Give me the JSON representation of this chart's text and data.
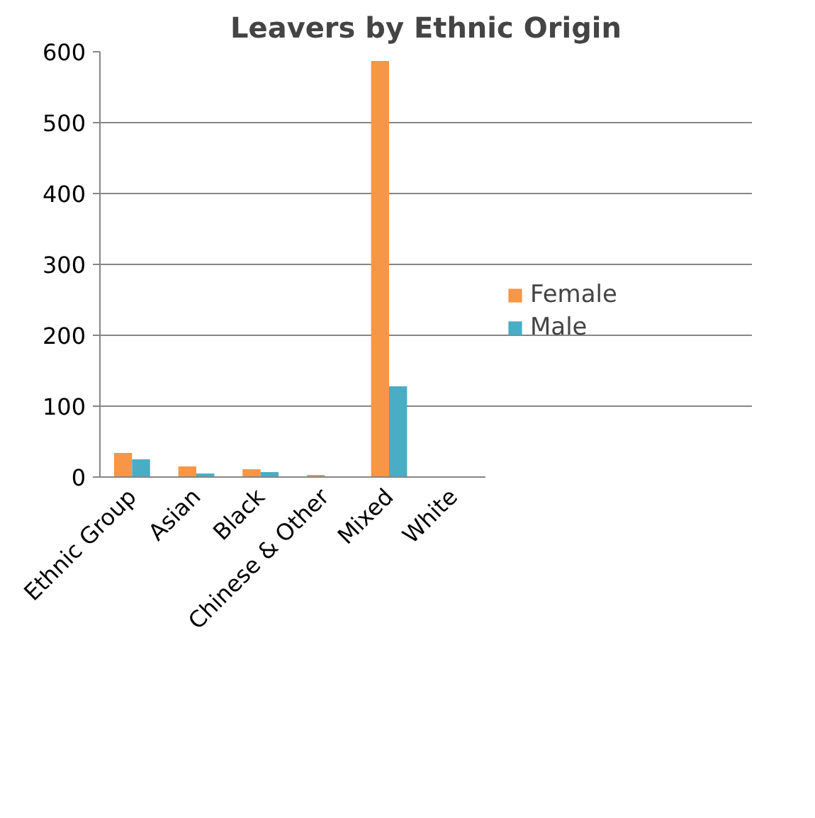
{
  "chart_data": {
    "type": "bar",
    "title": "Leavers by Ethnic Origin",
    "categories": [
      "Ethnic Group",
      "Asian",
      "Black",
      "Chinese & Other",
      "Mixed",
      "White"
    ],
    "series": [
      {
        "name": "Female",
        "color": "#f79646",
        "values": [
          34,
          15,
          11,
          3,
          587,
          0
        ]
      },
      {
        "name": "Male",
        "color": "#4bacc6",
        "values": [
          25,
          5,
          7,
          0,
          128,
          0
        ]
      }
    ],
    "ylim": [
      0,
      600
    ],
    "yticks": [
      0,
      100,
      200,
      300,
      400,
      500,
      600
    ],
    "grid": "y",
    "legend": "right"
  }
}
